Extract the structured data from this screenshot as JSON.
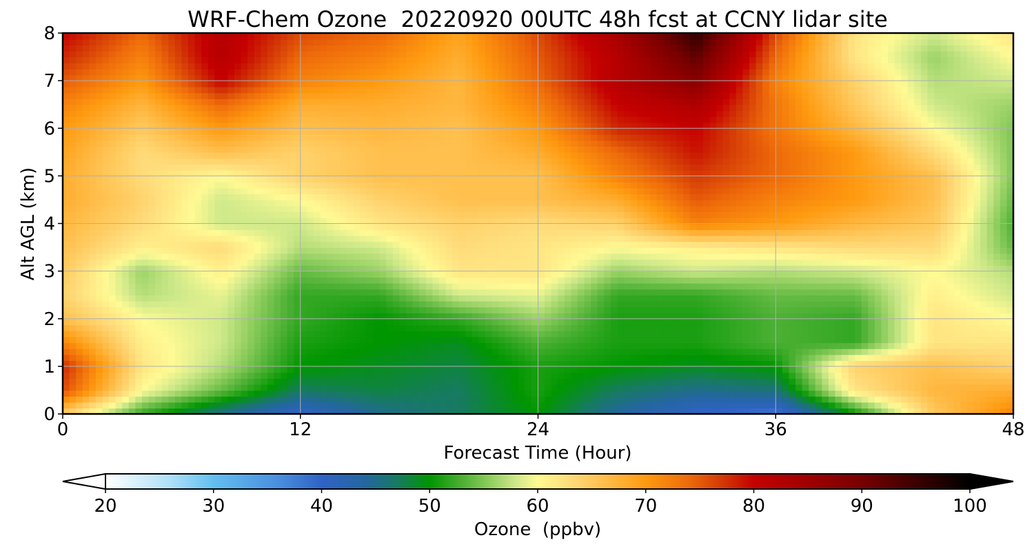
{
  "chart_data": {
    "type": "heatmap",
    "title": "WRF-Chem Ozone  20220920 00UTC 48h fcst at CCNY lidar site",
    "xlabel": "Forecast Time (Hour)",
    "ylabel": "Alt AGL (km)",
    "xlim": [
      0,
      48
    ],
    "ylim": [
      0,
      8
    ],
    "x_ticks": [
      0,
      12,
      24,
      36,
      48
    ],
    "y_ticks": [
      0,
      1,
      2,
      3,
      4,
      5,
      6,
      7,
      8
    ],
    "grid": true,
    "colorbar": {
      "label": "Ozone  (ppbv)",
      "orientation": "horizontal",
      "placement": "bottom",
      "range": [
        20,
        100
      ],
      "ticks": [
        20,
        30,
        40,
        50,
        60,
        70,
        80,
        90,
        100
      ],
      "extend": "both",
      "color_stops": [
        {
          "value": 20,
          "color": "#ffffff"
        },
        {
          "value": 26,
          "color": "#aee0f8"
        },
        {
          "value": 30,
          "color": "#63bff0"
        },
        {
          "value": 36,
          "color": "#4a8ee0"
        },
        {
          "value": 40,
          "color": "#2f63c6"
        },
        {
          "value": 44,
          "color": "#2466a0"
        },
        {
          "value": 47,
          "color": "#177a62"
        },
        {
          "value": 50,
          "color": "#009600"
        },
        {
          "value": 53,
          "color": "#4cb034"
        },
        {
          "value": 56,
          "color": "#9ad266"
        },
        {
          "value": 58,
          "color": "#cfe98a"
        },
        {
          "value": 60,
          "color": "#fffa94"
        },
        {
          "value": 63,
          "color": "#ffdb7a"
        },
        {
          "value": 66,
          "color": "#ffc04e"
        },
        {
          "value": 70,
          "color": "#ff9a10"
        },
        {
          "value": 74,
          "color": "#ee6a0a"
        },
        {
          "value": 77,
          "color": "#d43a06"
        },
        {
          "value": 80,
          "color": "#c50000"
        },
        {
          "value": 85,
          "color": "#a00000"
        },
        {
          "value": 90,
          "color": "#780000"
        },
        {
          "value": 95,
          "color": "#3c0000"
        },
        {
          "value": 100,
          "color": "#000000"
        }
      ]
    },
    "hours": [
      0,
      4,
      8,
      12,
      16,
      20,
      24,
      28,
      32,
      36,
      40,
      44,
      48
    ],
    "altitudes_km": [
      0,
      0.5,
      1,
      1.5,
      2,
      2.5,
      3,
      3.5,
      4,
      4.5,
      5,
      5.5,
      6,
      6.5,
      7,
      7.5,
      8
    ],
    "ozone_ppbv": [
      [
        64,
        52,
        45,
        40,
        45,
        47,
        50,
        44,
        40,
        38,
        50,
        65,
        72
      ],
      [
        76,
        60,
        54,
        47,
        48,
        47,
        51,
        47,
        45,
        46,
        62,
        67,
        68
      ],
      [
        78,
        62,
        57,
        50,
        49,
        48,
        51,
        50,
        49,
        50,
        64,
        66,
        64
      ],
      [
        72,
        61,
        58,
        51,
        50,
        49,
        53,
        51,
        51,
        53,
        52,
        62,
        62
      ],
      [
        66,
        60,
        58,
        52,
        50,
        52,
        56,
        51,
        51,
        53,
        52,
        62,
        60
      ],
      [
        64,
        57,
        59,
        52,
        52,
        58,
        59,
        52,
        52,
        54,
        54,
        61,
        58
      ],
      [
        65,
        56,
        61,
        54,
        56,
        62,
        62,
        56,
        58,
        57,
        58,
        60,
        57
      ],
      [
        66,
        61,
        63,
        57,
        58,
        63,
        62,
        60,
        61,
        62,
        63,
        63,
        54
      ],
      [
        67,
        63,
        58,
        58,
        62,
        64,
        63,
        64,
        72,
        70,
        67,
        65,
        53
      ],
      [
        68,
        64,
        58,
        60,
        64,
        66,
        66,
        68,
        75,
        72,
        70,
        66,
        54
      ],
      [
        68,
        63,
        60,
        64,
        66,
        66,
        66,
        72,
        77,
        74,
        70,
        66,
        55
      ],
      [
        69,
        63,
        66,
        64,
        66,
        66,
        68,
        74,
        79,
        74,
        70,
        63,
        55
      ],
      [
        70,
        65,
        70,
        66,
        67,
        66,
        70,
        78,
        80,
        73,
        67,
        60,
        55
      ],
      [
        72,
        67,
        74,
        68,
        68,
        67,
        72,
        80,
        83,
        73,
        65,
        58,
        56
      ],
      [
        75,
        70,
        80,
        72,
        70,
        67,
        74,
        82,
        88,
        72,
        64,
        57,
        58
      ],
      [
        78,
        72,
        82,
        74,
        72,
        68,
        75,
        82,
        92,
        74,
        62,
        56,
        60
      ],
      [
        80,
        74,
        82,
        76,
        74,
        69,
        76,
        84,
        96,
        76,
        62,
        58,
        62
      ]
    ]
  }
}
